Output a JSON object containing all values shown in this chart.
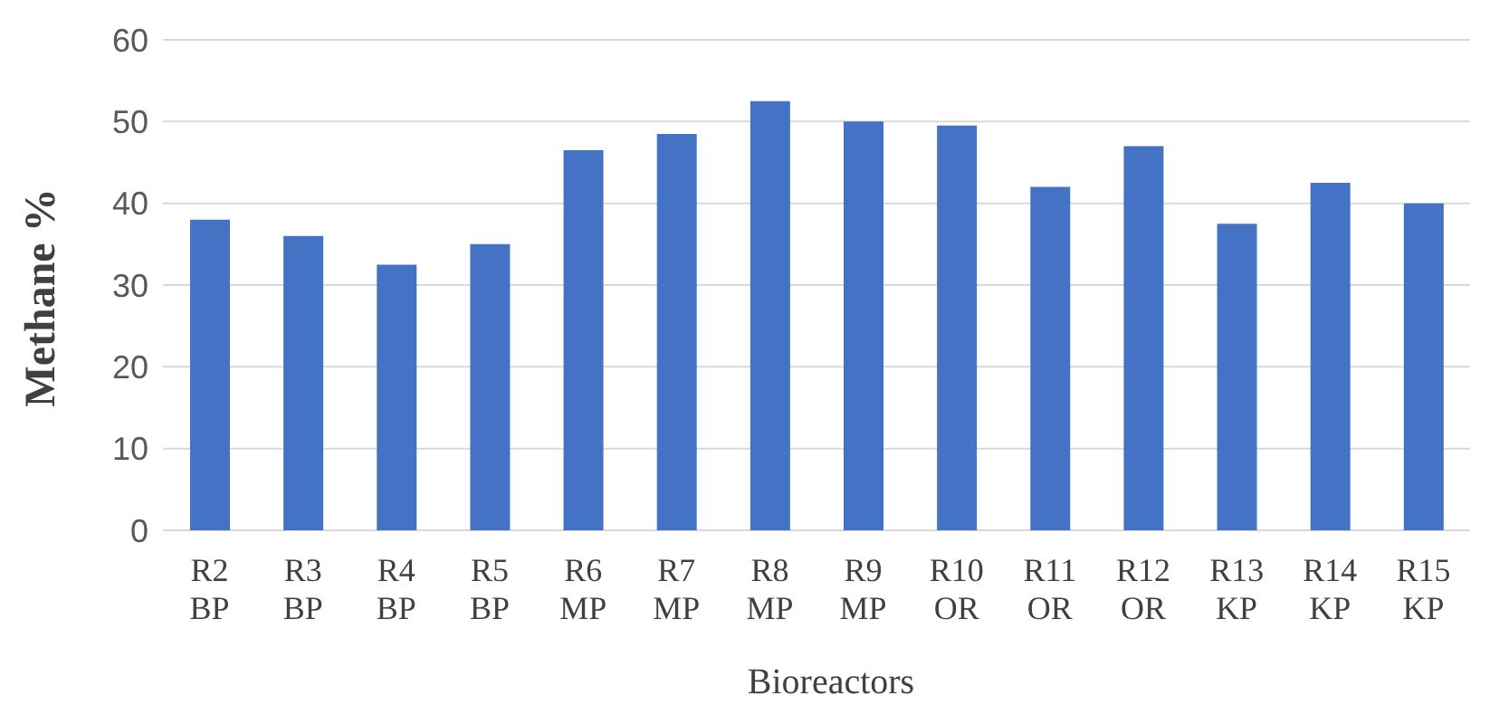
{
  "chart_data": {
    "type": "bar",
    "xlabel": "Bioreactors",
    "ylabel": "Methane %",
    "categories": [
      "R2 BP",
      "R3 BP",
      "R4 BP",
      "R5 BP",
      "R6 MP",
      "R7 MP",
      "R8 MP",
      "R9 MP",
      "R10 OR",
      "R11 OR",
      "R12 OR",
      "R13 KP",
      "R14 KP",
      "R15 KP"
    ],
    "values": [
      38,
      36,
      32.5,
      35,
      46.5,
      48.5,
      52.5,
      50,
      49.5,
      42,
      47,
      37.5,
      42.5,
      40
    ],
    "color": "#4472c4",
    "ylim": [
      0,
      60
    ],
    "yticks": [
      0,
      10,
      20,
      30,
      40,
      50,
      60
    ],
    "grid": "y"
  }
}
